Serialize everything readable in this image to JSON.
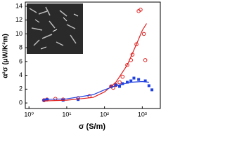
{
  "chart_data": {
    "type": "scatter",
    "x_label": "σ (S/m)",
    "y_label": "α²σ (μW/K²m)",
    "xscale": "log",
    "xlim": [
      0.8,
      3000
    ],
    "ylim": [
      -0.8,
      14.6
    ],
    "xticks": [
      {
        "value": 1,
        "label": "10⁰"
      },
      {
        "value": 10,
        "label": "10¹"
      },
      {
        "value": 100,
        "label": "10²"
      },
      {
        "value": 1000,
        "label": "10³"
      }
    ],
    "yticks": [
      0,
      2,
      4,
      6,
      8,
      10,
      12,
      14
    ],
    "series": [
      {
        "color": "#e02020",
        "marker": "circle",
        "x": [
          2.5,
          3,
          5,
          8,
          20,
          40,
          150,
          170,
          200,
          250,
          300,
          400,
          500,
          550,
          700,
          800,
          900,
          1100,
          1200
        ],
        "values": [
          0.4,
          0.5,
          0.6,
          0.5,
          0.7,
          1.0,
          2.4,
          2.2,
          2.6,
          3.0,
          3.8,
          5.5,
          6.2,
          7.0,
          8.5,
          13.3,
          13.5,
          10.0,
          6.2
        ]
      },
      {
        "color": "#2040e0",
        "marker": "square",
        "x": [
          2.5,
          3,
          8,
          20,
          150,
          200,
          250,
          300,
          400,
          500,
          600,
          800,
          1200,
          1500,
          1800
        ],
        "values": [
          0.4,
          0.5,
          0.4,
          0.5,
          2.4,
          2.6,
          2.4,
          2.8,
          3.0,
          3.2,
          3.6,
          3.4,
          3.2,
          2.5,
          1.9
        ]
      },
      {
        "color": "#e02020",
        "marker": "line",
        "x": [
          2.5,
          10,
          50,
          100,
          200,
          400,
          700,
          1000,
          1300
        ],
        "values": [
          0.3,
          0.4,
          0.8,
          1.6,
          3.0,
          5.5,
          8.5,
          10.5,
          11.5
        ]
      },
      {
        "color": "#2040e0",
        "marker": "line",
        "x": [
          2.5,
          10,
          50,
          100,
          200,
          500,
          1000,
          1500
        ],
        "values": [
          0.5,
          0.6,
          1.2,
          1.9,
          2.5,
          3.0,
          3.1,
          3.0
        ]
      }
    ]
  }
}
